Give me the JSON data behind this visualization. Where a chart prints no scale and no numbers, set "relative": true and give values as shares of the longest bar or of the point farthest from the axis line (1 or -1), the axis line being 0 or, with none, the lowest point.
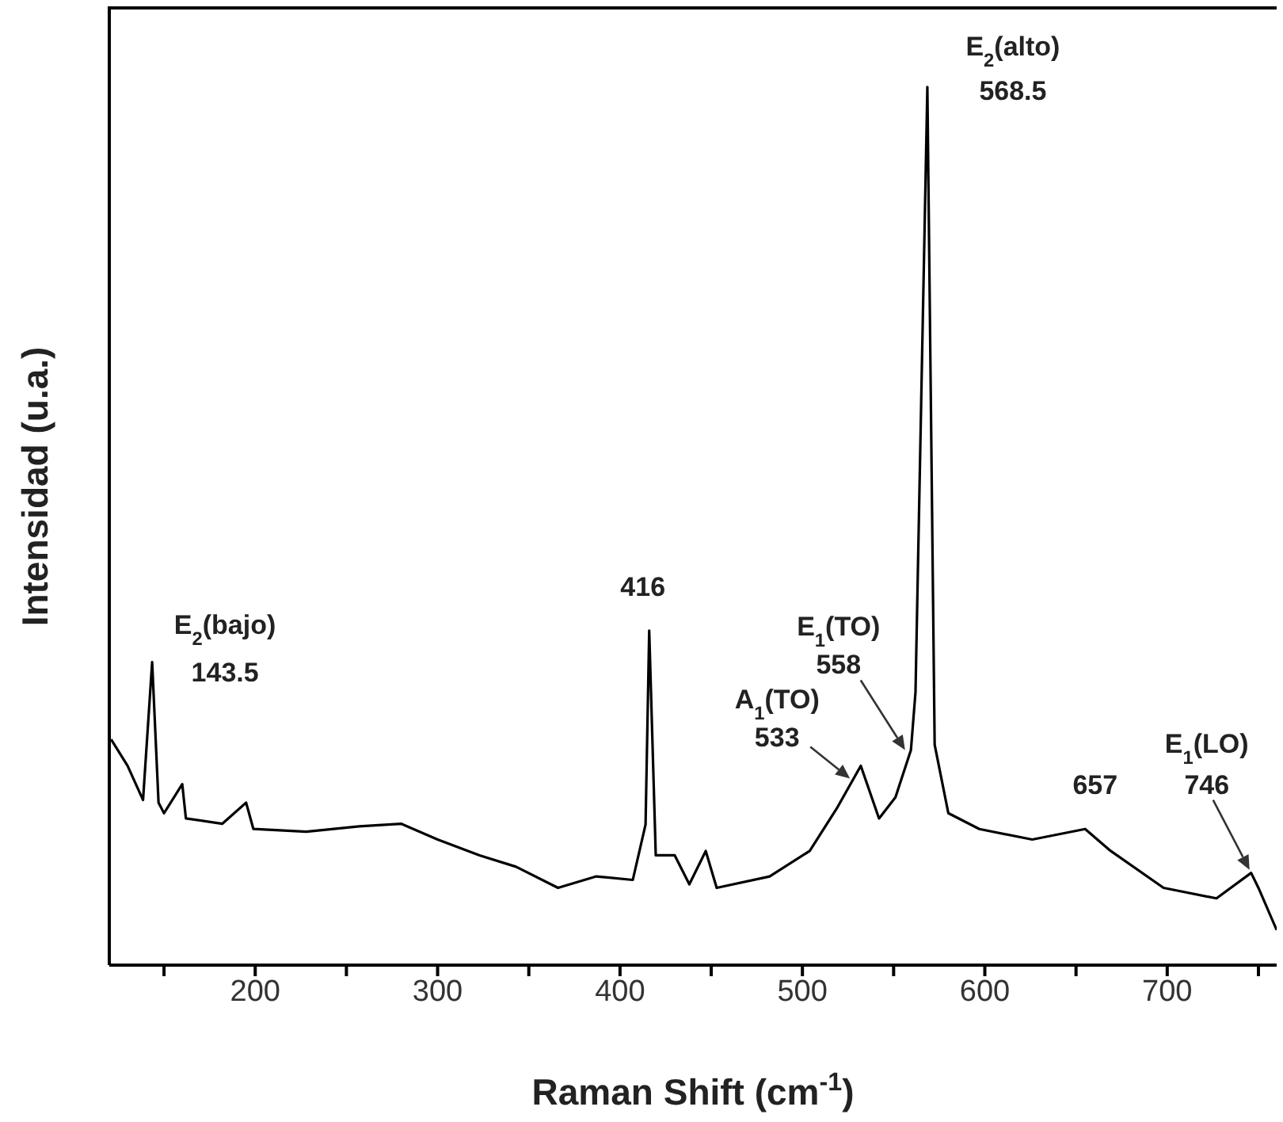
{
  "chart_data": {
    "type": "line",
    "relative": true,
    "xlabel": "Raman Shift (cm$^{-1}$)",
    "ylabel": "Intensidad (u.a.)",
    "xlim": [
      120,
      760
    ],
    "xticks": [
      {
        "value": 150,
        "label": null
      },
      200,
      {
        "value": 250,
        "label": null
      },
      300,
      {
        "value": 350,
        "label": null
      },
      400,
      {
        "value": 450,
        "label": null
      },
      500,
      {
        "value": 550,
        "label": null
      },
      600,
      {
        "value": 650,
        "label": null
      },
      700,
      {
        "value": 750,
        "label": null
      }
    ],
    "marker": "none",
    "line_style": "solid",
    "series": [
      {
        "color": "#000000",
        "x": [
          121,
          130,
          138.5,
          143.5,
          147,
          150,
          160,
          162,
          182,
          195,
          199,
          228,
          257,
          280,
          300,
          323,
          343,
          366,
          387,
          407,
          414,
          416,
          419.6,
          430,
          438,
          447,
          453,
          482,
          504,
          519,
          532,
          542,
          551,
          559.5,
          562,
          568.5,
          572.5,
          580,
          597,
          626,
          655,
          669,
          698,
          727,
          746,
          750,
          760
        ],
        "values": [
          0.257,
          0.227,
          0.188,
          0.345,
          0.185,
          0.173,
          0.206,
          0.167,
          0.161,
          0.185,
          0.155,
          0.152,
          0.158,
          0.161,
          0.143,
          0.125,
          0.112,
          0.088,
          0.101,
          0.097,
          0.16,
          0.381,
          0.125,
          0.125,
          0.092,
          0.13,
          0.088,
          0.101,
          0.13,
          0.179,
          0.227,
          0.167,
          0.191,
          0.245,
          0.311,
          1,
          0.251,
          0.173,
          0.155,
          0.143,
          0.155,
          0.13,
          0.088,
          0.076,
          0.105,
          0.088,
          0.04
        ]
      }
    ],
    "annotations": [
      {
        "text": "E$_{2}$(bajo)\n143.5",
        "x": 143.5,
        "y": 0.345
      },
      {
        "text": "416",
        "x": 416,
        "y": 0.381
      },
      {
        "text": "A$_{1}$(TO)\n533",
        "x": 533,
        "y": 0.227
      },
      {
        "text": "E$_{1}$(TO)\n558",
        "x": 558,
        "y": 0.245
      },
      {
        "text": "657",
        "x": 657,
        "y": 0.155
      },
      {
        "text": "E$_{1}$(LO)\n746",
        "x": 746,
        "y": 0.105
      },
      {
        "text": "E$_{2}$(alto)\n568.5",
        "x": 568.5,
        "y": 1
      }
    ]
  }
}
